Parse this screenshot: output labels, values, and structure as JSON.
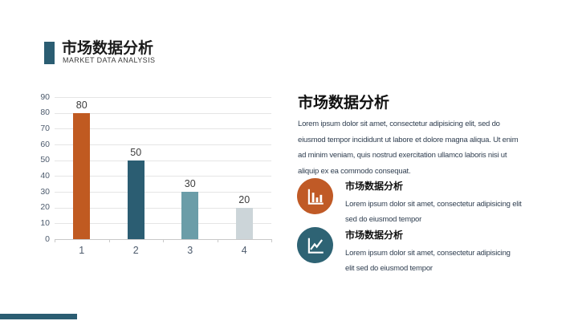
{
  "theme": {
    "accent_teal": "#2b5d72",
    "accent_orange": "#c05a21",
    "muted_teal": "#6b9da8",
    "light_gray": "#ccd5d9"
  },
  "header": {
    "title": "市场数据分析",
    "subtitle": "MARKET DATA ANALYSIS"
  },
  "chart_data": {
    "type": "bar",
    "categories": [
      "1",
      "2",
      "3",
      "4"
    ],
    "values": [
      80,
      50,
      30,
      20
    ],
    "data_labels": [
      "80",
      "50",
      "30",
      "20"
    ],
    "bar_colors": [
      "#c05a21",
      "#2b5d72",
      "#6b9da8",
      "#ccd5d9"
    ],
    "title": "",
    "xlabel": "",
    "ylabel": "",
    "ylim": [
      0,
      90
    ],
    "ytick_step": 10,
    "grid": true,
    "legend": false
  },
  "content": {
    "heading": "市场数据分析",
    "paragraph": "Lorem ipsum dolor sit amet, consectetur adipisicing elit, sed do\neiusmod tempor incididunt ut labore et dolore magna aliqua. Ut enim\nad minim veniam, quis nostrud exercitation ullamco laboris nisi ut\naliquip ex ea commodo consequat.",
    "features": [
      {
        "icon": "bar-chart-icon",
        "icon_color": "#c05a26",
        "title": "市场数据分析",
        "text": "Lorem ipsum dolor sit amet, consectetur adipisicing elit\nsed do eiusmod tempor"
      },
      {
        "icon": "line-chart-icon",
        "icon_color": "#2e6374",
        "title": "市场数据分析",
        "text": "Lorem ipsum dolor sit amet, consectetur adipisicing\nelit sed do eiusmod tempor"
      }
    ]
  },
  "footer": {
    "accent_color": "#2b5d72"
  }
}
